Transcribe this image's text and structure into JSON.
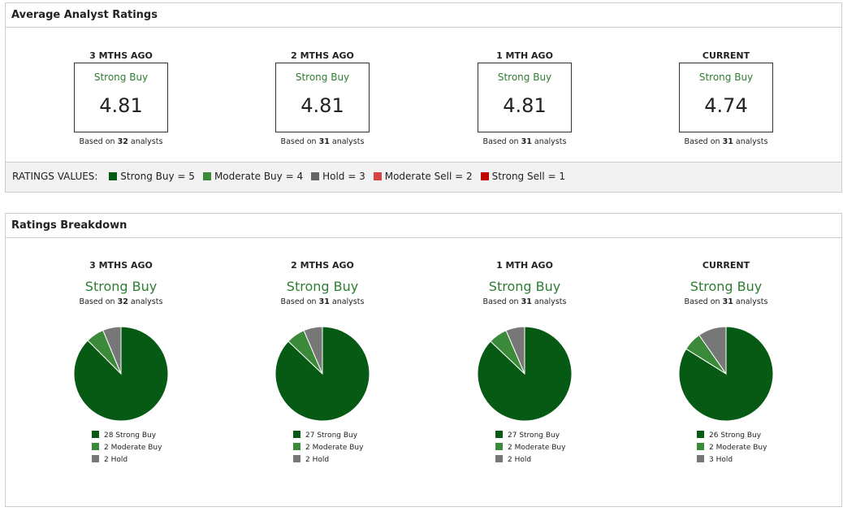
{
  "avg": {
    "title": "Average Analyst Ratings",
    "based_prefix": "Based on",
    "based_suffix": "analysts",
    "periods": [
      {
        "label": "3 MTHS AGO",
        "rating": "Strong Buy",
        "value": "4.81",
        "analysts": "32"
      },
      {
        "label": "2 MTHS AGO",
        "rating": "Strong Buy",
        "value": "4.81",
        "analysts": "31"
      },
      {
        "label": "1 MTH AGO",
        "rating": "Strong Buy",
        "value": "4.81",
        "analysts": "31"
      },
      {
        "label": "CURRENT",
        "rating": "Strong Buy",
        "value": "4.74",
        "analysts": "31"
      }
    ],
    "legend_label": "RATINGS VALUES:",
    "legend": [
      {
        "label": "Strong Buy = 5",
        "color": "#065a14"
      },
      {
        "label": "Moderate Buy = 4",
        "color": "#3a8a3a"
      },
      {
        "label": "Hold = 3",
        "color": "#666666"
      },
      {
        "label": "Moderate Sell = 2",
        "color": "#d64545"
      },
      {
        "label": "Strong Sell = 1",
        "color": "#c00000"
      }
    ]
  },
  "breakdown": {
    "title": "Ratings Breakdown",
    "periods": [
      {
        "label": "3 MTHS AGO",
        "rating": "Strong Buy",
        "analysts": "32",
        "slices": [
          {
            "count": 28,
            "label": "28 Strong Buy"
          },
          {
            "count": 2,
            "label": "2 Moderate Buy"
          },
          {
            "count": 2,
            "label": "2 Hold"
          }
        ]
      },
      {
        "label": "2 MTHS AGO",
        "rating": "Strong Buy",
        "analysts": "31",
        "slices": [
          {
            "count": 27,
            "label": "27 Strong Buy"
          },
          {
            "count": 2,
            "label": "2 Moderate Buy"
          },
          {
            "count": 2,
            "label": "2 Hold"
          }
        ]
      },
      {
        "label": "1 MTH AGO",
        "rating": "Strong Buy",
        "analysts": "31",
        "slices": [
          {
            "count": 27,
            "label": "27 Strong Buy"
          },
          {
            "count": 2,
            "label": "2 Moderate Buy"
          },
          {
            "count": 2,
            "label": "2 Hold"
          }
        ]
      },
      {
        "label": "CURRENT",
        "rating": "Strong Buy",
        "analysts": "31",
        "slices": [
          {
            "count": 26,
            "label": "26 Strong Buy"
          },
          {
            "count": 2,
            "label": "2 Moderate Buy"
          },
          {
            "count": 3,
            "label": "3 Hold"
          }
        ]
      }
    ],
    "slice_colors": [
      "#065a14",
      "#3a8a3a",
      "#777777"
    ]
  }
}
